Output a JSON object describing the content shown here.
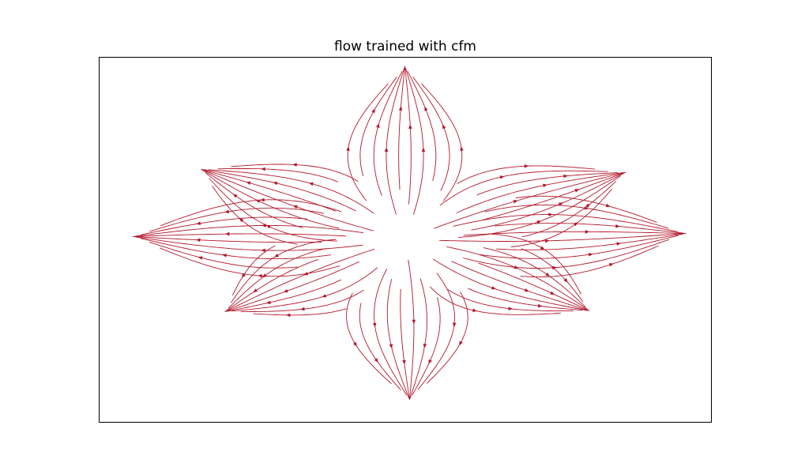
{
  "figure": {
    "title": "flow trained with cfm"
  },
  "chart_data": {
    "type": "streamplot",
    "title": "flow trained with cfm",
    "xlabel": "",
    "ylabel": "",
    "axes_ticks": "none",
    "grid": false,
    "legend": "none",
    "xlim": [
      -1,
      1
    ],
    "ylim": [
      -1,
      1
    ],
    "line_color": "#b2182b",
    "pattern": "8-petal flower, streamlines radiating outward from center",
    "petals": [
      {
        "direction": "up",
        "angle_deg": 90,
        "length": 0.95,
        "half_width": 0.16
      },
      {
        "direction": "upper-right",
        "angle_deg": 27,
        "length": 0.81,
        "half_width": 0.18
      },
      {
        "direction": "right",
        "angle_deg": 2,
        "length": 0.92,
        "half_width": 0.19
      },
      {
        "direction": "lower-right",
        "angle_deg": -33,
        "length": 0.72,
        "half_width": 0.18
      },
      {
        "direction": "down",
        "angle_deg": -89,
        "length": 0.88,
        "half_width": 0.17
      },
      {
        "direction": "lower-left",
        "angle_deg": -146,
        "length": 0.71,
        "half_width": 0.18
      },
      {
        "direction": "left",
        "angle_deg": 179,
        "length": 0.89,
        "half_width": 0.18
      },
      {
        "direction": "upper-left",
        "angle_deg": 150,
        "length": 0.77,
        "half_width": 0.18
      }
    ]
  }
}
